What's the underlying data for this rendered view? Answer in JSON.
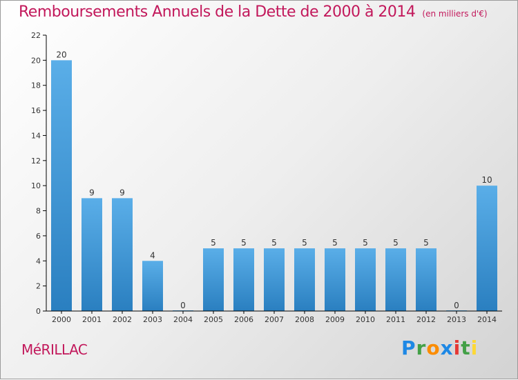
{
  "title": "Remboursements Annuels de la Dette de 2000 à 2014",
  "subtitle": "(en milliers d'€)",
  "commune": "MéRILLAC",
  "logo": {
    "text": "Proxiti",
    "letters": [
      {
        "ch": "P",
        "color": "#1e88e5"
      },
      {
        "ch": "r",
        "color": "#43a047"
      },
      {
        "ch": "o",
        "color": "#fb8c00"
      },
      {
        "ch": "x",
        "color": "#1e88e5"
      },
      {
        "ch": "i",
        "color": "#e53935"
      },
      {
        "ch": "t",
        "color": "#43a047"
      },
      {
        "ch": "i",
        "color": "#fdd835"
      }
    ]
  },
  "chart_data": {
    "type": "bar",
    "categories": [
      "2000",
      "2001",
      "2002",
      "2003",
      "2004",
      "2005",
      "2006",
      "2007",
      "2008",
      "2009",
      "2010",
      "2011",
      "2012",
      "2013",
      "2014"
    ],
    "values": [
      20,
      9,
      9,
      4,
      0,
      5,
      5,
      5,
      5,
      5,
      5,
      5,
      5,
      0,
      10
    ],
    "ylim": [
      0,
      22
    ],
    "yticks": [
      0,
      2,
      4,
      6,
      8,
      10,
      12,
      14,
      16,
      18,
      20,
      22
    ],
    "grid": false,
    "bar_color_light": "#5aaee8",
    "bar_color_dark": "#2a7fc0",
    "axis_color": "#000000",
    "value_labels": true
  }
}
